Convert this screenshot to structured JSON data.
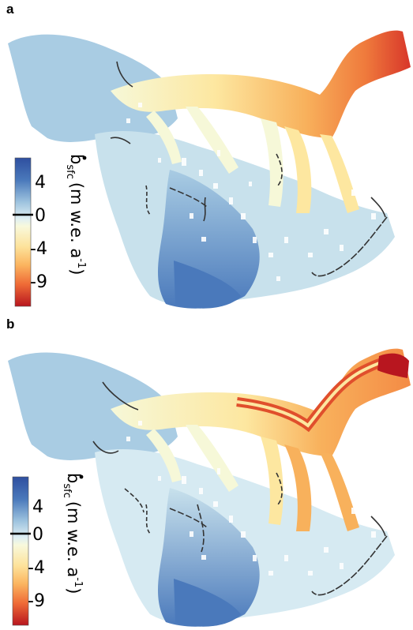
{
  "panels": [
    {
      "id": "a",
      "label": "a",
      "colorbar": {
        "ticks": [
          "4",
          "0",
          "-4",
          "-9"
        ],
        "title_main": "b",
        "title_sub": "sfc",
        "title_units_prefix": "(m w.e. a",
        "title_units_exp": "-1",
        "title_units_suffix": ")"
      }
    },
    {
      "id": "b",
      "label": "b",
      "colorbar": {
        "ticks": [
          "4",
          "0",
          "-4",
          "-9"
        ],
        "title_main": "b",
        "title_sub": "sfc",
        "title_units_prefix": "(m w.e. a",
        "title_units_exp": "-1",
        "title_units_suffix": ")"
      }
    }
  ],
  "colorscale": [
    "#2f4f9f",
    "#4a79bb",
    "#78a6d1",
    "#a9cce3",
    "#d6eaf2",
    "#f6f8d8",
    "#fde7a0",
    "#fbbf69",
    "#f48b45",
    "#e04f2c",
    "#b8161f"
  ],
  "colors": {
    "contour_line": "#333333",
    "glacier_high": "#78a9d3",
    "glacier_mid": "#c8e1ec",
    "trunk_warm": "#f7c96c"
  }
}
